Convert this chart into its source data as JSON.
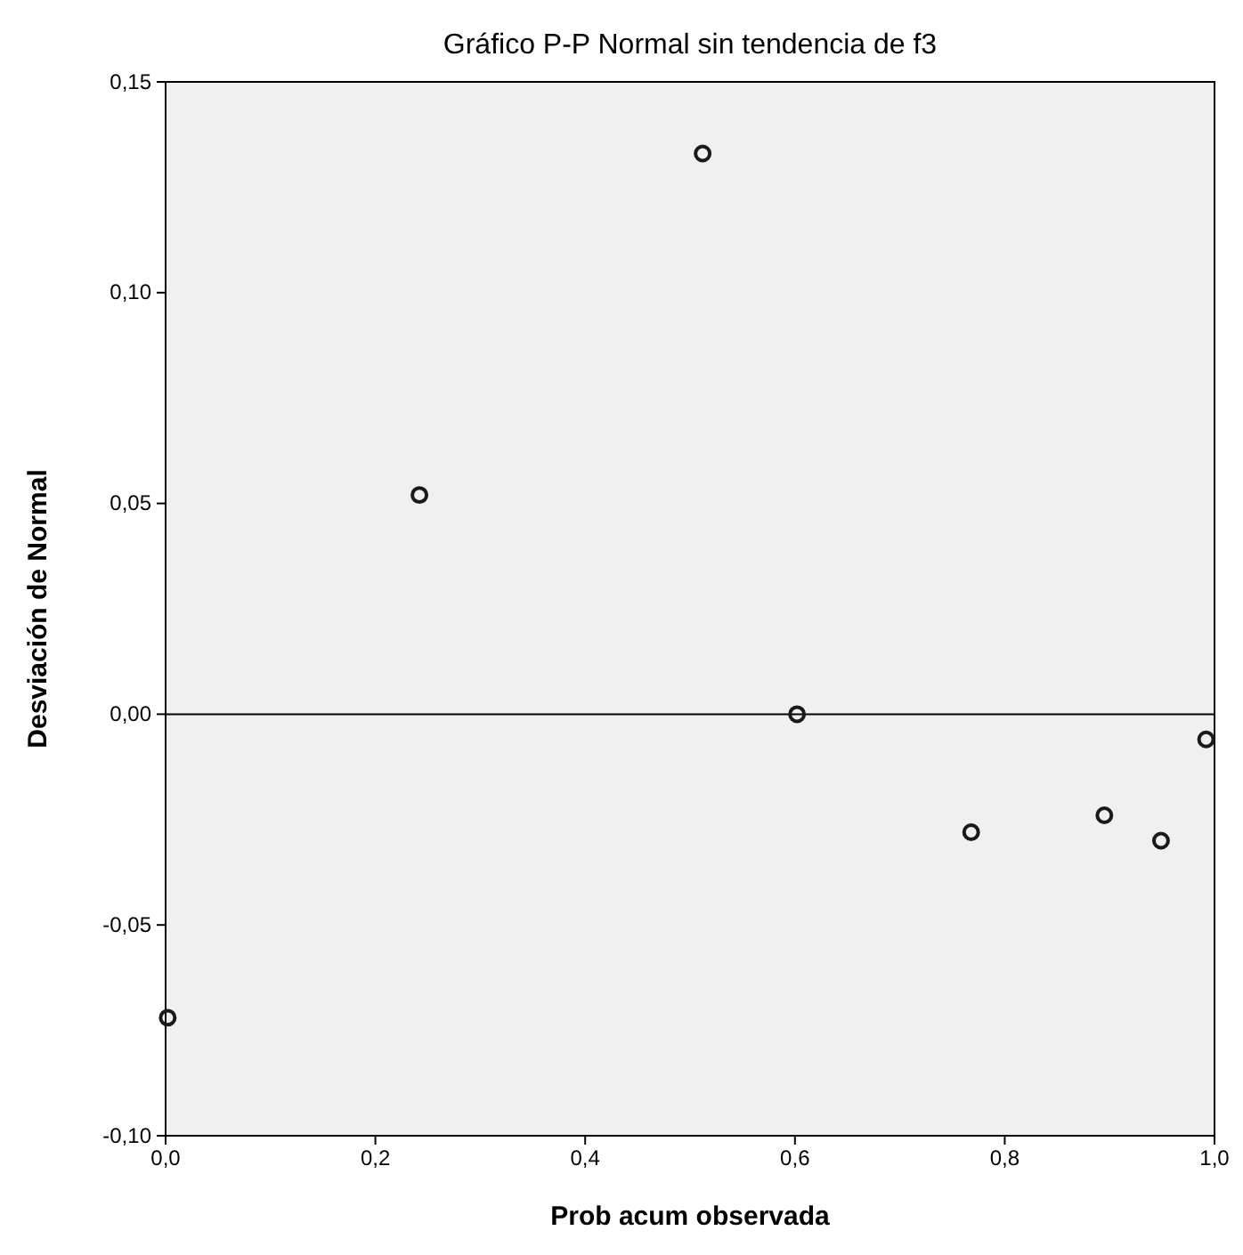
{
  "chart_data": {
    "type": "scatter",
    "title": "Gráfico P-P Normal sin tendencia de f3",
    "xlabel": "Prob acum observada",
    "ylabel": "Desviación de Normal",
    "x": [
      0.002,
      0.242,
      0.512,
      0.602,
      0.768,
      0.895,
      0.949,
      0.992
    ],
    "series": [
      {
        "color": "#1a1a1a",
        "values": [
          -0.072,
          0.052,
          0.133,
          0.0,
          -0.028,
          -0.024,
          -0.03,
          -0.006
        ]
      }
    ],
    "xlim": [
      0,
      1
    ],
    "ylim": [
      -0.1,
      0.15
    ],
    "xticks": [
      {
        "value": 0,
        "label": "0,0"
      },
      {
        "value": 0.2,
        "label": "0,2"
      },
      {
        "value": 0.4,
        "label": "0,4"
      },
      {
        "value": 0.6,
        "label": "0,6"
      },
      {
        "value": 0.8,
        "label": "0,8"
      },
      {
        "value": 1,
        "label": "1,0"
      }
    ],
    "yticks": [
      {
        "value": -0.1,
        "label": "-0,10"
      },
      {
        "value": -0.05,
        "label": "-0,05"
      },
      {
        "value": 0,
        "label": "0,00"
      },
      {
        "value": 0.05,
        "label": "0,05"
      },
      {
        "value": 0.1,
        "label": "0,10"
      },
      {
        "value": 0.15,
        "label": "0,15"
      }
    ],
    "ref_lines": [
      {
        "axis": "y",
        "value": 0,
        "color": "#000000"
      }
    ],
    "grid": false,
    "marker": "circle"
  }
}
